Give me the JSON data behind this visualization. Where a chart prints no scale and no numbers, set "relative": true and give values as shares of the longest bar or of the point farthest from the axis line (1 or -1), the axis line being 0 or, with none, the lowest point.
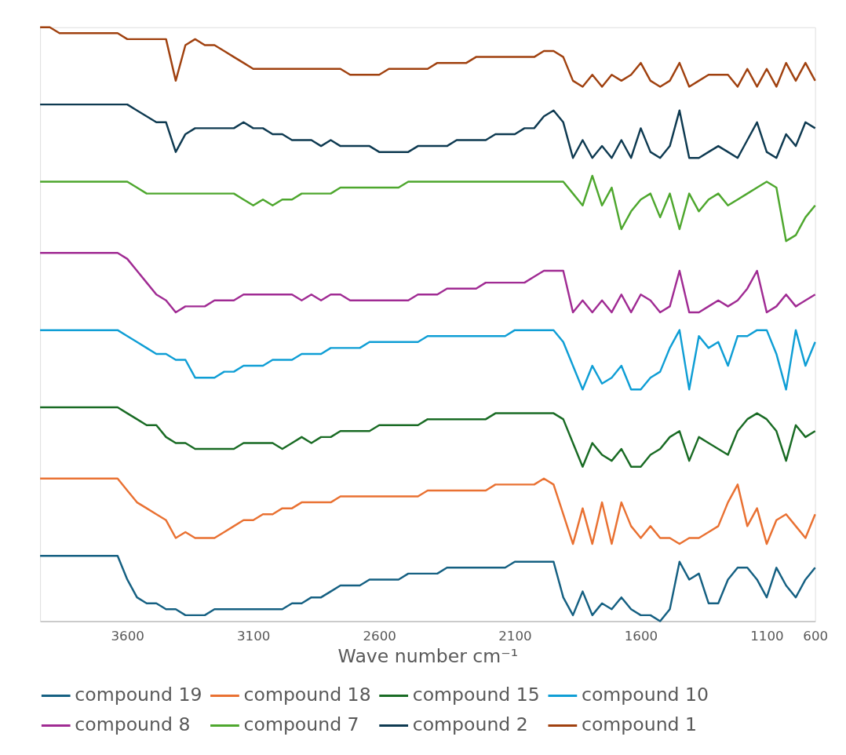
{
  "chart_data": {
    "type": "line",
    "relative": true,
    "xlabel": "Wave number cm⁻¹",
    "legend": "bottom",
    "categories": [
      null,
      null,
      null,
      null,
      null,
      null,
      null,
      null,
      null,
      "3600",
      null,
      null,
      null,
      null,
      null,
      null,
      null,
      null,
      null,
      null,
      null,
      null,
      "3100",
      null,
      null,
      null,
      null,
      null,
      null,
      null,
      null,
      null,
      null,
      null,
      null,
      "2600",
      null,
      null,
      null,
      null,
      null,
      null,
      null,
      null,
      null,
      null,
      null,
      null,
      null,
      "2100",
      null,
      null,
      null,
      null,
      null,
      null,
      null,
      null,
      null,
      null,
      null,
      null,
      "1600",
      null,
      null,
      null,
      null,
      null,
      null,
      null,
      null,
      null,
      null,
      null,
      null,
      "1100",
      null,
      null,
      null,
      null,
      "600"
    ],
    "series": [
      {
        "name": "compound 19",
        "color": "#156082",
        "values": [
          0.11,
          0.11,
          0.11,
          0.11,
          0.11,
          0.11,
          0.11,
          0.11,
          0.11,
          0.07,
          0.04,
          0.03,
          0.03,
          0.02,
          0.02,
          0.01,
          0.01,
          0.01,
          0.02,
          0.02,
          0.02,
          0.02,
          0.02,
          0.02,
          0.02,
          0.02,
          0.03,
          0.03,
          0.04,
          0.04,
          0.05,
          0.06,
          0.06,
          0.06,
          0.07,
          0.07,
          0.07,
          0.07,
          0.08,
          0.08,
          0.08,
          0.08,
          0.09,
          0.09,
          0.09,
          0.09,
          0.09,
          0.09,
          0.09,
          0.1,
          0.1,
          0.1,
          0.1,
          0.1,
          0.04,
          0.01,
          0.05,
          0.01,
          0.03,
          0.02,
          0.04,
          0.02,
          0.01,
          0.01,
          0.0,
          0.02,
          0.1,
          0.07,
          0.08,
          0.03,
          0.03,
          0.07,
          0.09,
          0.09,
          0.07,
          0.04,
          0.09,
          0.06,
          0.04,
          0.07,
          0.09
        ]
      },
      {
        "name": "compound 18",
        "color": "#e97132",
        "values": [
          0.24,
          0.24,
          0.24,
          0.24,
          0.24,
          0.24,
          0.24,
          0.24,
          0.24,
          0.22,
          0.2,
          0.19,
          0.18,
          0.17,
          0.14,
          0.15,
          0.14,
          0.14,
          0.14,
          0.15,
          0.16,
          0.17,
          0.17,
          0.18,
          0.18,
          0.19,
          0.19,
          0.2,
          0.2,
          0.2,
          0.2,
          0.21,
          0.21,
          0.21,
          0.21,
          0.21,
          0.21,
          0.21,
          0.21,
          0.21,
          0.22,
          0.22,
          0.22,
          0.22,
          0.22,
          0.22,
          0.22,
          0.23,
          0.23,
          0.23,
          0.23,
          0.23,
          0.24,
          0.23,
          0.18,
          0.13,
          0.19,
          0.13,
          0.2,
          0.13,
          0.2,
          0.16,
          0.14,
          0.16,
          0.14,
          0.14,
          0.13,
          0.14,
          0.14,
          0.15,
          0.16,
          0.2,
          0.23,
          0.16,
          0.19,
          0.13,
          0.17,
          0.18,
          0.16,
          0.14,
          0.18
        ]
      },
      {
        "name": "compound 15",
        "color": "#196b24",
        "values": [
          0.36,
          0.36,
          0.36,
          0.36,
          0.36,
          0.36,
          0.36,
          0.36,
          0.36,
          0.35,
          0.34,
          0.33,
          0.33,
          0.31,
          0.3,
          0.3,
          0.29,
          0.29,
          0.29,
          0.29,
          0.29,
          0.3,
          0.3,
          0.3,
          0.3,
          0.29,
          0.3,
          0.31,
          0.3,
          0.31,
          0.31,
          0.32,
          0.32,
          0.32,
          0.32,
          0.33,
          0.33,
          0.33,
          0.33,
          0.33,
          0.34,
          0.34,
          0.34,
          0.34,
          0.34,
          0.34,
          0.34,
          0.35,
          0.35,
          0.35,
          0.35,
          0.35,
          0.35,
          0.35,
          0.34,
          0.3,
          0.26,
          0.3,
          0.28,
          0.27,
          0.29,
          0.26,
          0.26,
          0.28,
          0.29,
          0.31,
          0.32,
          0.27,
          0.31,
          0.3,
          0.29,
          0.28,
          0.32,
          0.34,
          0.35,
          0.34,
          0.32,
          0.27,
          0.33,
          0.31,
          0.32
        ]
      },
      {
        "name": "compound 10",
        "color": "#0f9ed5",
        "values": [
          0.49,
          0.49,
          0.49,
          0.49,
          0.49,
          0.49,
          0.49,
          0.49,
          0.49,
          0.48,
          0.47,
          0.46,
          0.45,
          0.45,
          0.44,
          0.44,
          0.41,
          0.41,
          0.41,
          0.42,
          0.42,
          0.43,
          0.43,
          0.43,
          0.44,
          0.44,
          0.44,
          0.45,
          0.45,
          0.45,
          0.46,
          0.46,
          0.46,
          0.46,
          0.47,
          0.47,
          0.47,
          0.47,
          0.47,
          0.47,
          0.48,
          0.48,
          0.48,
          0.48,
          0.48,
          0.48,
          0.48,
          0.48,
          0.48,
          0.49,
          0.49,
          0.49,
          0.49,
          0.49,
          0.47,
          0.43,
          0.39,
          0.43,
          0.4,
          0.41,
          0.43,
          0.39,
          0.39,
          0.41,
          0.42,
          0.46,
          0.49,
          0.39,
          0.48,
          0.46,
          0.47,
          0.43,
          0.48,
          0.48,
          0.49,
          0.49,
          0.45,
          0.39,
          0.49,
          0.43,
          0.47
        ]
      },
      {
        "name": "compound 8",
        "color": "#a02b93",
        "values": [
          0.62,
          0.62,
          0.62,
          0.62,
          0.62,
          0.62,
          0.62,
          0.62,
          0.62,
          0.61,
          0.59,
          0.57,
          0.55,
          0.54,
          0.52,
          0.53,
          0.53,
          0.53,
          0.54,
          0.54,
          0.54,
          0.55,
          0.55,
          0.55,
          0.55,
          0.55,
          0.55,
          0.54,
          0.55,
          0.54,
          0.55,
          0.55,
          0.54,
          0.54,
          0.54,
          0.54,
          0.54,
          0.54,
          0.54,
          0.55,
          0.55,
          0.55,
          0.56,
          0.56,
          0.56,
          0.56,
          0.57,
          0.57,
          0.57,
          0.57,
          0.57,
          0.58,
          0.59,
          0.59,
          0.59,
          0.52,
          0.54,
          0.52,
          0.54,
          0.52,
          0.55,
          0.52,
          0.55,
          0.54,
          0.52,
          0.53,
          0.59,
          0.52,
          0.52,
          0.53,
          0.54,
          0.53,
          0.54,
          0.56,
          0.59,
          0.52,
          0.53,
          0.55,
          0.53,
          0.54,
          0.55
        ]
      },
      {
        "name": "compound 7",
        "color": "#4ea72e",
        "values": [
          0.74,
          0.74,
          0.74,
          0.74,
          0.74,
          0.74,
          0.74,
          0.74,
          0.74,
          0.74,
          0.73,
          0.72,
          0.72,
          0.72,
          0.72,
          0.72,
          0.72,
          0.72,
          0.72,
          0.72,
          0.72,
          0.71,
          0.7,
          0.71,
          0.7,
          0.71,
          0.71,
          0.72,
          0.72,
          0.72,
          0.72,
          0.73,
          0.73,
          0.73,
          0.73,
          0.73,
          0.73,
          0.73,
          0.74,
          0.74,
          0.74,
          0.74,
          0.74,
          0.74,
          0.74,
          0.74,
          0.74,
          0.74,
          0.74,
          0.74,
          0.74,
          0.74,
          0.74,
          0.74,
          0.74,
          0.72,
          0.7,
          0.75,
          0.7,
          0.73,
          0.66,
          0.69,
          0.71,
          0.72,
          0.68,
          0.72,
          0.66,
          0.72,
          0.69,
          0.71,
          0.72,
          0.7,
          0.71,
          0.72,
          0.73,
          0.74,
          0.73,
          0.64,
          0.65,
          0.68,
          0.7
        ]
      },
      {
        "name": "compound 2",
        "color": "#0e3a51",
        "values": [
          0.87,
          0.87,
          0.87,
          0.87,
          0.87,
          0.87,
          0.87,
          0.87,
          0.87,
          0.87,
          0.86,
          0.85,
          0.84,
          0.84,
          0.79,
          0.82,
          0.83,
          0.83,
          0.83,
          0.83,
          0.83,
          0.84,
          0.83,
          0.83,
          0.82,
          0.82,
          0.81,
          0.81,
          0.81,
          0.8,
          0.81,
          0.8,
          0.8,
          0.8,
          0.8,
          0.79,
          0.79,
          0.79,
          0.79,
          0.8,
          0.8,
          0.8,
          0.8,
          0.81,
          0.81,
          0.81,
          0.81,
          0.82,
          0.82,
          0.82,
          0.83,
          0.83,
          0.85,
          0.86,
          0.84,
          0.78,
          0.81,
          0.78,
          0.8,
          0.78,
          0.81,
          0.78,
          0.83,
          0.79,
          0.78,
          0.8,
          0.86,
          0.78,
          0.78,
          0.79,
          0.8,
          0.79,
          0.78,
          0.81,
          0.84,
          0.79,
          0.78,
          0.82,
          0.8,
          0.84,
          0.83
        ]
      },
      {
        "name": "compound 1",
        "color": "#a0410f",
        "values": [
          1.0,
          1.0,
          0.99,
          0.99,
          0.99,
          0.99,
          0.99,
          0.99,
          0.99,
          0.98,
          0.98,
          0.98,
          0.98,
          0.98,
          0.91,
          0.97,
          0.98,
          0.97,
          0.97,
          0.96,
          0.95,
          0.94,
          0.93,
          0.93,
          0.93,
          0.93,
          0.93,
          0.93,
          0.93,
          0.93,
          0.93,
          0.93,
          0.92,
          0.92,
          0.92,
          0.92,
          0.93,
          0.93,
          0.93,
          0.93,
          0.93,
          0.94,
          0.94,
          0.94,
          0.94,
          0.95,
          0.95,
          0.95,
          0.95,
          0.95,
          0.95,
          0.95,
          0.96,
          0.96,
          0.95,
          0.91,
          0.9,
          0.92,
          0.9,
          0.92,
          0.91,
          0.92,
          0.94,
          0.91,
          0.9,
          0.91,
          0.94,
          0.9,
          0.91,
          0.92,
          0.92,
          0.92,
          0.9,
          0.93,
          0.9,
          0.93,
          0.9,
          0.94,
          0.91,
          0.94,
          0.91
        ]
      }
    ]
  }
}
